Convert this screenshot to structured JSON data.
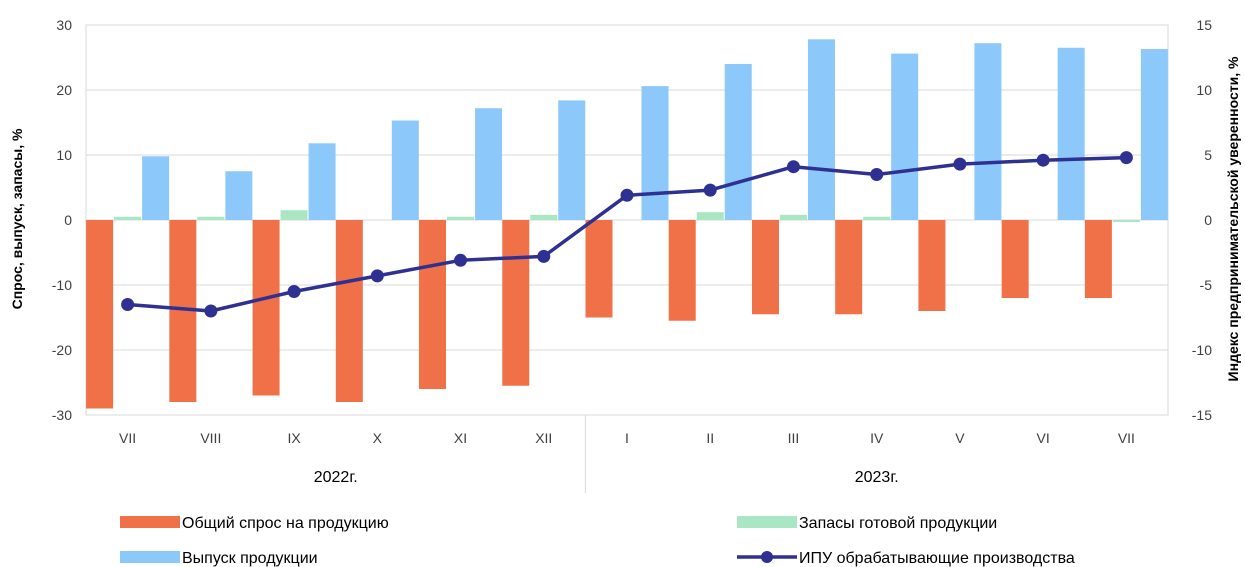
{
  "chart_data": {
    "type": "bar",
    "categories": [
      "VII",
      "VIII",
      "IX",
      "X",
      "XI",
      "XII",
      "I",
      "II",
      "III",
      "IV",
      "V",
      "VI",
      "VII"
    ],
    "year_groups": [
      {
        "label": "2022г.",
        "categories": 6
      },
      {
        "label": "2023г.",
        "categories": 7
      }
    ],
    "ylabel": "Спрос, выпуск, запасы, %",
    "y2label": "Индекс предпринимательской уверенности, %",
    "ylim": [
      -30,
      30
    ],
    "y2lim": [
      -15,
      15
    ],
    "yticks": [
      -30,
      -20,
      -10,
      0,
      10,
      20,
      30
    ],
    "y2ticks": [
      -15,
      -10,
      -5,
      0,
      5,
      10,
      15
    ],
    "grid": true,
    "legend_position": "bottom",
    "series": [
      {
        "name": "Общий спрос на продукцию",
        "type": "bar",
        "axis": "left",
        "color": "#F07048",
        "values": [
          -29,
          -28,
          -27,
          -28,
          -26,
          -25.5,
          -15,
          -15.5,
          -14.5,
          -14.5,
          -14,
          -12,
          -12
        ]
      },
      {
        "name": "Запасы готовой продукции",
        "type": "bar",
        "axis": "left",
        "color": "#A8E6C4",
        "values": [
          0.5,
          0.5,
          1.5,
          0,
          0.5,
          0.8,
          0,
          1.2,
          0.8,
          0.5,
          0,
          0,
          -0.3
        ]
      },
      {
        "name": "Выпуск продукции",
        "type": "bar",
        "axis": "left",
        "color": "#8CC8FA",
        "values": [
          9.8,
          7.5,
          11.8,
          15.3,
          17.2,
          18.4,
          20.6,
          24,
          27.8,
          25.6,
          27.2,
          26.5,
          26.3
        ]
      },
      {
        "name": "ИПУ обрабатывающие производства",
        "type": "line",
        "axis": "right",
        "color": "#2E3192",
        "values": [
          -6.5,
          -7,
          -5.5,
          -4.3,
          -3.1,
          -2.8,
          1.9,
          2.3,
          4.1,
          3.5,
          4.3,
          4.6,
          4.8
        ]
      }
    ]
  }
}
